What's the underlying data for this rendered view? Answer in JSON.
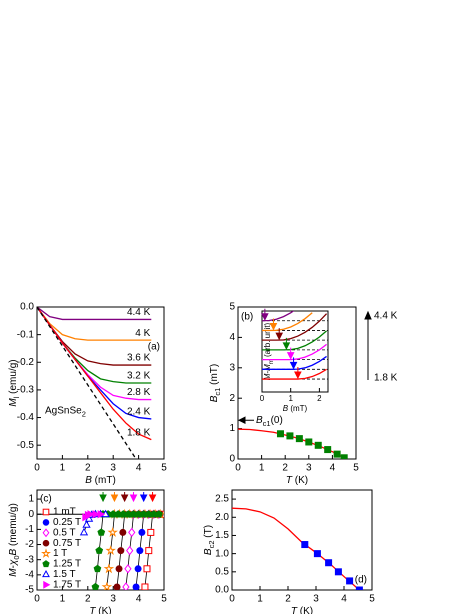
{
  "chart_data": [
    {
      "type": "line",
      "panel_label": "(a)",
      "xlabel": [
        {
          "text": "B",
          "italic": true
        },
        {
          "text": " (mT)"
        }
      ],
      "ylabel": [
        {
          "text": "M",
          "italic": true
        },
        {
          "text": "l",
          "sub": true
        },
        {
          "text": " (emu/g)"
        }
      ],
      "xlim": [
        0,
        5
      ],
      "xticks": [
        0,
        1,
        2,
        3,
        4,
        5
      ],
      "ylim": [
        -0.55,
        0
      ],
      "yticks": [
        {
          "value": 0,
          "label": "0.0"
        },
        -0.1,
        -0.2,
        -0.3,
        -0.4,
        -0.5
      ],
      "x": [
        0,
        0.5,
        1,
        1.5,
        2,
        2.5,
        3,
        3.5,
        4,
        4.5
      ],
      "name_labels": true,
      "annotation": [
        {
          "text": "AgSnSe"
        },
        {
          "text": "2",
          "sub": true
        }
      ],
      "series": [
        {
          "name": "4.4 K",
          "color": "#800080",
          "values": [
            0,
            -0.035,
            -0.045,
            -0.045,
            -0.045,
            -0.045,
            -0.045,
            -0.045,
            -0.045,
            -0.045
          ]
        },
        {
          "name": "4 K",
          "color": "#ff8000",
          "values": [
            0,
            -0.06,
            -0.1,
            -0.115,
            -0.12,
            -0.12,
            -0.12,
            -0.12,
            -0.12,
            -0.12
          ]
        },
        {
          "name": "3.6 K",
          "color": "#800000",
          "values": [
            0,
            -0.065,
            -0.125,
            -0.17,
            -0.195,
            -0.205,
            -0.21,
            -0.21,
            -0.21,
            -0.21
          ]
        },
        {
          "name": "3.2 K",
          "color": "#008000",
          "values": [
            0,
            -0.065,
            -0.13,
            -0.185,
            -0.23,
            -0.26,
            -0.27,
            -0.275,
            -0.275,
            -0.275
          ]
        },
        {
          "name": "2.8 K",
          "color": "#ff00ff",
          "values": [
            0,
            -0.065,
            -0.13,
            -0.19,
            -0.245,
            -0.29,
            -0.32,
            -0.33,
            -0.335,
            -0.335
          ]
        },
        {
          "name": "2.4 K",
          "color": "#0000ff",
          "values": [
            0,
            -0.065,
            -0.13,
            -0.19,
            -0.25,
            -0.3,
            -0.35,
            -0.385,
            -0.4,
            -0.405
          ]
        },
        {
          "name": "1.8 K",
          "color": "#ff0000",
          "values": [
            0,
            -0.065,
            -0.13,
            -0.19,
            -0.25,
            -0.31,
            -0.37,
            -0.42,
            -0.46,
            -0.48
          ]
        },
        {
          "color": "#000000",
          "dash": true,
          "x": [
            0,
            3.9
          ],
          "values": [
            0,
            -0.55
          ]
        }
      ]
    },
    {
      "type": "line",
      "panel_label": "(b)",
      "xlabel": [
        {
          "text": "T",
          "italic": true
        },
        {
          "text": " (K)"
        }
      ],
      "ylabel": [
        {
          "text": "B",
          "italic": true
        },
        {
          "text": "c1",
          "sub": true
        },
        {
          "text": " (mT)"
        }
      ],
      "xlim": [
        0,
        5
      ],
      "xticks": [
        0,
        1,
        2,
        3,
        4,
        5
      ],
      "ylim": [
        0,
        5
      ],
      "yticks": [
        0,
        1,
        2,
        3,
        4,
        5
      ],
      "annotation": [
        {
          "text": "B",
          "italic": true
        },
        {
          "text": "c1",
          "sub": true
        },
        {
          "text": "(0)"
        }
      ],
      "series": [
        {
          "color": "#ff0000",
          "x": [
            0,
            0.5,
            1,
            1.5,
            2,
            2.5,
            3,
            3.5,
            4,
            4.6
          ],
          "values": [
            0.98,
            0.97,
            0.93,
            0.88,
            0.79,
            0.69,
            0.56,
            0.41,
            0.24,
            0
          ]
        },
        {
          "color": "#008000",
          "line": false,
          "marker": "square",
          "filled": true,
          "x": [
            1.8,
            2.2,
            2.6,
            3.0,
            3.4,
            3.8,
            4.2,
            4.5
          ],
          "values": [
            0.83,
            0.76,
            0.67,
            0.56,
            0.45,
            0.31,
            0.16,
            0.04
          ]
        }
      ]
    },
    {
      "type": "line",
      "xlabel": [
        {
          "text": "B",
          "italic": true
        },
        {
          "text": " (mT)"
        }
      ],
      "ylabel": [
        {
          "text": "M-M",
          "italic": true
        },
        {
          "text": "m",
          "sub": true
        },
        {
          "text": " (arb. unit)"
        }
      ],
      "xlim": [
        0,
        2.3
      ],
      "xticks": [
        0,
        1,
        2
      ],
      "ylim": [
        0,
        7.5
      ],
      "x": [
        0,
        0.25,
        0.5,
        0.75,
        1,
        1.25,
        1.5,
        1.75,
        2,
        2.25
      ],
      "range_labels": [
        "4.4 K",
        "1.8 K"
      ],
      "series": [
        {
          "color": "#800080",
          "baseline": 6.6,
          "arrow": 0.1,
          "x": [
            0,
            0.25,
            0.5,
            0.75,
            1,
            1.25
          ],
          "values": [
            6.6,
            6.62,
            6.74,
            6.98,
            7.33,
            7.79
          ]
        },
        {
          "color": "#ff8000",
          "baseline": 5.7,
          "arrow": 0.4,
          "x": [
            0,
            0.25,
            0.5,
            0.75,
            1,
            1.25,
            1.5,
            1.75
          ],
          "values": [
            5.7,
            5.7,
            5.71,
            5.81,
            6.02,
            6.35,
            6.79,
            7.34
          ]
        },
        {
          "color": "#800000",
          "baseline": 4.8,
          "arrow": 0.6,
          "values": [
            4.8,
            4.8,
            4.8,
            4.82,
            4.94,
            5.18,
            5.53,
            5.99,
            6.56,
            7.25
          ]
        },
        {
          "color": "#008000",
          "baseline": 3.9,
          "arrow": 0.85,
          "values": [
            3.9,
            3.9,
            3.9,
            3.9,
            3.92,
            4.04,
            4.28,
            4.63,
            5.09,
            5.66
          ]
        },
        {
          "color": "#ff00ff",
          "baseline": 3.0,
          "arrow": 1.0,
          "values": [
            3,
            3,
            3,
            3,
            3,
            3.06,
            3.23,
            3.51,
            3.9,
            4.41
          ]
        },
        {
          "color": "#0000ff",
          "baseline": 2.1,
          "arrow": 1.1,
          "values": [
            2.1,
            2.1,
            2.1,
            2.1,
            2.1,
            2.12,
            2.24,
            2.48,
            2.83,
            3.29
          ]
        },
        {
          "color": "#ff0000",
          "baseline": 1.2,
          "arrow": 1.25,
          "values": [
            1.2,
            1.2,
            1.2,
            1.2,
            1.2,
            1.2,
            1.26,
            1.43,
            1.71,
            2.1
          ]
        }
      ]
    },
    {
      "type": "line",
      "panel_label": "(c)",
      "xlabel": [
        {
          "text": "T",
          "italic": true
        },
        {
          "text": " (K)"
        }
      ],
      "ylabel": [
        {
          "text": "M",
          "italic": true
        },
        {
          "text": "-"
        },
        {
          "text": "χ",
          "italic": true
        },
        {
          "text": "0",
          "sub": true
        },
        {
          "text": "B",
          "italic": true
        },
        {
          "text": " (memu/g)"
        }
      ],
      "xlim": [
        0,
        5
      ],
      "xticks": [
        0,
        1,
        2,
        3,
        4,
        5
      ],
      "ylim": [
        -5,
        1.6
      ],
      "yticks": [
        1,
        0,
        -1,
        -2,
        -3,
        -4,
        -5
      ],
      "legend": "left",
      "zero_line": true,
      "arrows": [
        {
          "x": 2.6,
          "color": "#008000"
        },
        {
          "x": 3.05,
          "color": "#ff8000"
        },
        {
          "x": 3.45,
          "color": "#800000"
        },
        {
          "x": 3.8,
          "color": "#ff00ff"
        },
        {
          "x": 4.2,
          "color": "#0000ff"
        },
        {
          "x": 4.55,
          "color": "#ff0000"
        }
      ],
      "series": [
        {
          "name": "1 mT",
          "color": "#ff0000",
          "marker": "square",
          "filled": false,
          "line_color": "#000000",
          "x": [
            4.25,
            4.33,
            4.4,
            4.48,
            4.55,
            4.75,
            4.95
          ],
          "values": [
            -4.8,
            -3.6,
            -2.4,
            -1.2,
            0,
            0,
            0
          ]
        },
        {
          "name": "0.25 T",
          "color": "#0000ff",
          "marker": "circle",
          "filled": true,
          "line_color": "#000000",
          "x": [
            3.9,
            3.98,
            4.05,
            4.13,
            4.2,
            4.4,
            4.6,
            4.8
          ],
          "values": [
            -4.8,
            -3.6,
            -2.4,
            -1.2,
            0,
            0,
            0,
            0
          ]
        },
        {
          "name": "0.5 T",
          "color": "#ff00ff",
          "marker": "diamond",
          "filled": false,
          "line_color": "#000000",
          "x": [
            3.5,
            3.58,
            3.65,
            3.73,
            3.8,
            4.0,
            4.2,
            4.4,
            4.6,
            4.8
          ],
          "values": [
            -4.8,
            -3.6,
            -2.4,
            -1.2,
            0,
            0,
            0,
            0,
            0,
            0
          ]
        },
        {
          "name": "0.75 T",
          "color": "#800000",
          "marker": "circle",
          "filled": true,
          "line_color": "#000000",
          "x": [
            3.15,
            3.23,
            3.3,
            3.38,
            3.45,
            3.65,
            3.85,
            4.05,
            4.25,
            4.45,
            4.65,
            4.85
          ],
          "values": [
            -4.8,
            -3.6,
            -2.4,
            -1.2,
            0,
            0,
            0,
            0,
            0,
            0,
            0,
            0
          ]
        },
        {
          "name": "1 T",
          "color": "#ff8000",
          "marker": "star",
          "filled": false,
          "line_color": "#000000",
          "x": [
            2.75,
            2.83,
            2.9,
            2.98,
            3.05,
            3.25,
            3.45,
            3.65,
            3.85,
            4.05,
            4.25,
            4.45,
            4.65,
            4.85
          ],
          "values": [
            -4.8,
            -3.6,
            -2.4,
            -1.2,
            0,
            0,
            0,
            0,
            0,
            0,
            0,
            0,
            0,
            0
          ]
        },
        {
          "name": "1.25 T",
          "color": "#008000",
          "marker": "pentagon",
          "filled": true,
          "line_color": "#000000",
          "x": [
            2.3,
            2.38,
            2.45,
            2.53,
            2.6,
            2.8,
            3.0,
            3.2,
            3.4,
            3.6,
            3.8,
            4.0,
            4.2,
            4.4,
            4.6,
            4.8
          ],
          "values": [
            -4.8,
            -3.6,
            -2.4,
            -1.2,
            0,
            0,
            0,
            0,
            0,
            0,
            0,
            0,
            0,
            0,
            0,
            0
          ]
        },
        {
          "name": "1.5 T",
          "color": "#0000ff",
          "marker": "triangle",
          "filled": false,
          "line_color": "#000000",
          "x": [
            1.85,
            1.95,
            2.05,
            2.15,
            2.3,
            2.5,
            2.7
          ],
          "values": [
            -1.2,
            -0.7,
            -0.3,
            -0.05,
            0,
            0,
            0
          ]
        },
        {
          "name": "1.75 T",
          "color": "#ff00ff",
          "marker": "triangle-right",
          "filled": true,
          "line_color": "#000000",
          "x": [
            1.9,
            2.0,
            2.1,
            2.3,
            2.5
          ],
          "values": [
            -0.2,
            -0.05,
            0,
            0,
            0
          ]
        }
      ]
    },
    {
      "type": "line",
      "panel_label": "(d)",
      "xlabel": [
        {
          "text": "T",
          "italic": true
        },
        {
          "text": " (K)"
        }
      ],
      "ylabel": [
        {
          "text": "B",
          "italic": true
        },
        {
          "text": "c2",
          "sub": true
        },
        {
          "text": " (T)"
        }
      ],
      "xlim": [
        0,
        5
      ],
      "xticks": [
        0,
        1,
        2,
        3,
        4,
        5
      ],
      "ylim": [
        0,
        2.75
      ],
      "yticks": [
        {
          "value": 0,
          "label": "0.0"
        },
        0.5,
        {
          "value": 1,
          "label": "1.0"
        },
        1.5,
        {
          "value": 2,
          "label": "2.0"
        },
        2.5
      ],
      "series": [
        {
          "color": "#ff0000",
          "x": [
            0,
            0.5,
            1,
            1.5,
            2,
            2.5,
            3,
            3.5,
            4,
            4.55
          ],
          "values": [
            2.25,
            2.23,
            2.15,
            1.98,
            1.68,
            1.31,
            1.03,
            0.72,
            0.37,
            0
          ]
        },
        {
          "color": "#0000ff",
          "line": false,
          "marker": "square",
          "filled": true,
          "x": [
            2.6,
            3.05,
            3.45,
            3.8,
            4.2,
            4.55
          ],
          "values": [
            1.25,
            1.0,
            0.75,
            0.5,
            0.25,
            0
          ]
        }
      ]
    }
  ]
}
